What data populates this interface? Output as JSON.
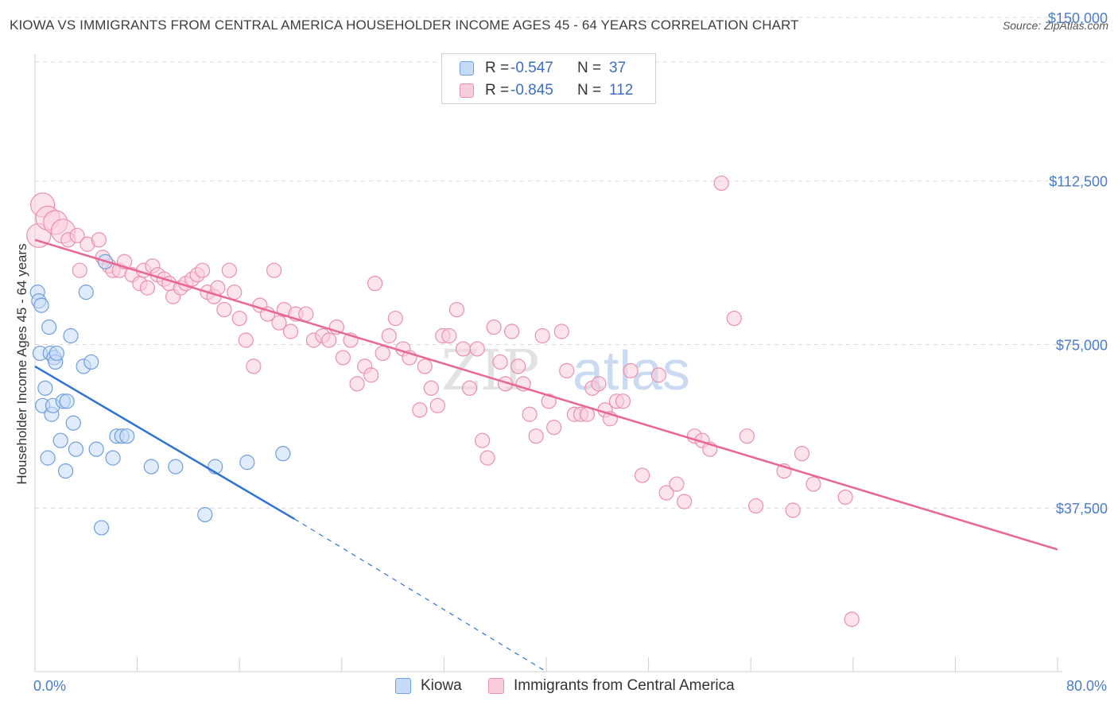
{
  "title": "KIOWA VS IMMIGRANTS FROM CENTRAL AMERICA HOUSEHOLDER INCOME AGES 45 - 64 YEARS CORRELATION CHART",
  "source": "Source: ZipAtlas.com",
  "watermark": {
    "zip": "ZIP",
    "atlas": "atlas"
  },
  "legend": {
    "rows": [
      {
        "r_label": "R =",
        "r_value": "-0.547",
        "n_label": "N =",
        "n_value": "37",
        "color": "#a9c8f0"
      },
      {
        "r_label": "R =",
        "r_value": "-0.845",
        "n_label": "N =",
        "n_value": "112",
        "color": "#f5b8cb"
      }
    ]
  },
  "bottom_legend": {
    "kiowa": "Kiowa",
    "central_america": "Immigrants from Central America"
  },
  "colors": {
    "kiowa_fill": "#c6dbf7",
    "kiowa_stroke": "#6f9fdc",
    "kiowa_line": "#2f74d6",
    "ca_fill": "#f9cdda",
    "ca_stroke": "#ea8fad",
    "ca_line": "#e8668f",
    "tick_label": "#4a7cc9",
    "grid": "#d9d9d9"
  },
  "chart_data": {
    "type": "scatter",
    "title": "KIOWA VS IMMIGRANTS FROM CENTRAL AMERICA HOUSEHOLDER INCOME AGES 45 - 64 YEARS CORRELATION CHART",
    "xlabel": "",
    "ylabel": "Householder Income Ages 45 - 64 years",
    "xlim": [
      0,
      80
    ],
    "ylim": [
      0,
      154000
    ],
    "x_tick_labels": [
      "0.0%",
      "80.0%"
    ],
    "y_ticks": [
      37500,
      75000,
      112500,
      150000
    ],
    "y_tick_labels": [
      "$37,500",
      "$75,000",
      "$112,500",
      "$150,000"
    ],
    "grid": "horizontal dashed",
    "legend_position": "top-center",
    "series": [
      {
        "name": "Kiowa",
        "r": -0.547,
        "n": 37,
        "points": [
          [
            0.2,
            87000
          ],
          [
            0.3,
            85000
          ],
          [
            0.4,
            73000
          ],
          [
            0.5,
            84000
          ],
          [
            0.6,
            61000
          ],
          [
            0.8,
            65000
          ],
          [
            1.0,
            49000
          ],
          [
            1.1,
            79000
          ],
          [
            1.2,
            73000
          ],
          [
            1.3,
            59000
          ],
          [
            1.4,
            61000
          ],
          [
            1.5,
            72000
          ],
          [
            1.6,
            71000
          ],
          [
            1.7,
            73000
          ],
          [
            2.0,
            53000
          ],
          [
            2.2,
            62000
          ],
          [
            2.4,
            46000
          ],
          [
            2.5,
            62000
          ],
          [
            2.8,
            77000
          ],
          [
            3.0,
            57000
          ],
          [
            3.2,
            51000
          ],
          [
            3.8,
            70000
          ],
          [
            4.0,
            87000
          ],
          [
            4.4,
            71000
          ],
          [
            4.8,
            51000
          ],
          [
            5.2,
            33000
          ],
          [
            5.5,
            94000
          ],
          [
            6.1,
            49000
          ],
          [
            6.4,
            54000
          ],
          [
            6.8,
            54000
          ],
          [
            7.2,
            54000
          ],
          [
            9.1,
            47000
          ],
          [
            11.0,
            47000
          ],
          [
            13.3,
            36000
          ],
          [
            14.1,
            47000
          ],
          [
            16.6,
            48000
          ],
          [
            19.4,
            50000
          ]
        ],
        "trend": {
          "x0": 0,
          "y0": 70000,
          "x1": 20.3,
          "y1": 35000,
          "dashed_to_x": 40.0,
          "dashed_to_y": 0
        }
      },
      {
        "name": "Immigrants from Central America",
        "r": -0.845,
        "n": 112,
        "points": [
          [
            0.3,
            100000
          ],
          [
            0.6,
            107000
          ],
          [
            1.0,
            104000
          ],
          [
            1.6,
            103000
          ],
          [
            2.2,
            101000
          ],
          [
            2.6,
            99000
          ],
          [
            3.3,
            100000
          ],
          [
            3.5,
            92000
          ],
          [
            4.1,
            98000
          ],
          [
            5.0,
            99000
          ],
          [
            5.3,
            95000
          ],
          [
            5.8,
            93000
          ],
          [
            6.1,
            92000
          ],
          [
            6.6,
            92000
          ],
          [
            7.0,
            94000
          ],
          [
            7.6,
            91000
          ],
          [
            8.2,
            89000
          ],
          [
            8.5,
            92000
          ],
          [
            8.8,
            88000
          ],
          [
            9.2,
            93000
          ],
          [
            9.6,
            91000
          ],
          [
            10.1,
            90000
          ],
          [
            10.5,
            89000
          ],
          [
            10.8,
            86000
          ],
          [
            11.4,
            88000
          ],
          [
            11.8,
            89000
          ],
          [
            12.3,
            90000
          ],
          [
            12.7,
            91000
          ],
          [
            13.1,
            92000
          ],
          [
            13.5,
            87000
          ],
          [
            14.0,
            86000
          ],
          [
            14.3,
            88000
          ],
          [
            14.8,
            83000
          ],
          [
            15.2,
            92000
          ],
          [
            15.6,
            87000
          ],
          [
            16.0,
            81000
          ],
          [
            16.5,
            76000
          ],
          [
            17.1,
            70000
          ],
          [
            17.6,
            84000
          ],
          [
            18.2,
            82000
          ],
          [
            18.7,
            92000
          ],
          [
            19.1,
            80000
          ],
          [
            19.5,
            83000
          ],
          [
            20.0,
            78000
          ],
          [
            20.4,
            82000
          ],
          [
            21.2,
            82000
          ],
          [
            21.8,
            76000
          ],
          [
            22.5,
            77000
          ],
          [
            23.0,
            76000
          ],
          [
            23.6,
            79000
          ],
          [
            24.1,
            72000
          ],
          [
            24.7,
            76000
          ],
          [
            25.2,
            66000
          ],
          [
            25.8,
            70000
          ],
          [
            26.3,
            68000
          ],
          [
            26.6,
            89000
          ],
          [
            27.2,
            73000
          ],
          [
            27.7,
            77000
          ],
          [
            28.2,
            81000
          ],
          [
            28.8,
            74000
          ],
          [
            29.3,
            72000
          ],
          [
            30.1,
            60000
          ],
          [
            30.5,
            70000
          ],
          [
            31.0,
            65000
          ],
          [
            31.5,
            61000
          ],
          [
            31.9,
            77000
          ],
          [
            32.4,
            77000
          ],
          [
            33.0,
            83000
          ],
          [
            33.5,
            74000
          ],
          [
            34.0,
            65000
          ],
          [
            34.6,
            74000
          ],
          [
            35.0,
            53000
          ],
          [
            35.4,
            49000
          ],
          [
            35.9,
            79000
          ],
          [
            36.4,
            71000
          ],
          [
            36.8,
            66000
          ],
          [
            37.3,
            78000
          ],
          [
            37.8,
            70000
          ],
          [
            38.2,
            66000
          ],
          [
            38.7,
            59000
          ],
          [
            39.2,
            54000
          ],
          [
            39.7,
            77000
          ],
          [
            40.2,
            62000
          ],
          [
            40.6,
            56000
          ],
          [
            41.2,
            78000
          ],
          [
            41.6,
            69000
          ],
          [
            42.2,
            59000
          ],
          [
            42.7,
            59000
          ],
          [
            43.2,
            59000
          ],
          [
            43.6,
            65000
          ],
          [
            44.1,
            66000
          ],
          [
            44.6,
            60000
          ],
          [
            45.0,
            58000
          ],
          [
            45.5,
            62000
          ],
          [
            46.0,
            62000
          ],
          [
            46.6,
            69000
          ],
          [
            47.5,
            45000
          ],
          [
            48.8,
            68000
          ],
          [
            49.4,
            41000
          ],
          [
            50.2,
            43000
          ],
          [
            50.8,
            39000
          ],
          [
            51.6,
            54000
          ],
          [
            52.2,
            53000
          ],
          [
            52.8,
            51000
          ],
          [
            53.7,
            112000
          ],
          [
            54.7,
            81000
          ],
          [
            55.7,
            54000
          ],
          [
            56.4,
            38000
          ],
          [
            58.6,
            46000
          ],
          [
            59.3,
            37000
          ],
          [
            60.0,
            50000
          ],
          [
            60.9,
            43000
          ],
          [
            63.4,
            40000
          ],
          [
            63.9,
            12000
          ]
        ],
        "trend": {
          "x0": 0,
          "y0": 99000,
          "x1": 80,
          "y1": 28000
        }
      }
    ]
  }
}
